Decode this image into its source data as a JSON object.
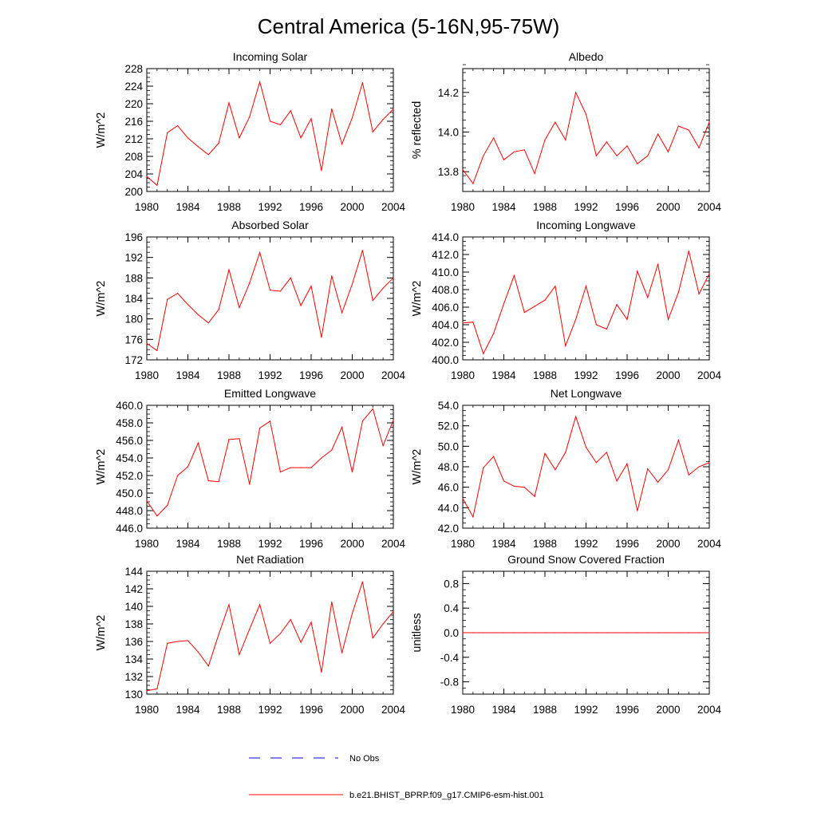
{
  "title": "Central America (5-16N,95-75W)",
  "colors": {
    "model_line": "#ff0000",
    "obs_line": "#0000ff",
    "axis": "#000000"
  },
  "legend": {
    "obs_label": "No Obs",
    "model_label": "b.e21.BHIST_BPRP.f09_g17.CMIP6-esm-hist.001"
  },
  "chart_data": [
    {
      "type": "line",
      "title": "Incoming Solar",
      "ylabel": "W/m^2",
      "xlim": [
        1980,
        2004
      ],
      "ylim": [
        200,
        228
      ],
      "xticks": [
        1980,
        1984,
        1988,
        1992,
        1996,
        2000,
        2004
      ],
      "xtick_labels": [
        "1980",
        "1984",
        "1988",
        "1992",
        "1996",
        "2000",
        "2004"
      ],
      "yticks": [
        200,
        204,
        208,
        212,
        216,
        220,
        224,
        228
      ],
      "ytick_labels": [
        "200",
        "204",
        "208",
        "212",
        "216",
        "220",
        "224",
        "228"
      ],
      "ytick_minor_step": 1,
      "series": [
        {
          "name": "b.e21.BHIST_BPRP.f09_g17.CMIP6-esm-hist.001",
          "x": [
            1980,
            1981,
            1982,
            1983,
            1984,
            1985,
            1986,
            1987,
            1988,
            1989,
            1990,
            1991,
            1992,
            1993,
            1994,
            1995,
            1996,
            1997,
            1998,
            1999,
            2000,
            2001,
            2002,
            2003,
            2004
          ],
          "values": [
            203.4,
            201.4,
            213.4,
            215.0,
            212.2,
            210.2,
            208.4,
            211.0,
            220.2,
            212.2,
            217.0,
            225.0,
            216.0,
            215.2,
            218.4,
            212.2,
            216.6,
            204.8,
            218.8,
            210.8,
            216.8,
            224.8,
            213.6,
            216.4,
            218.8
          ]
        }
      ]
    },
    {
      "type": "line",
      "title": "Albedo",
      "ylabel": "% reflected",
      "xlim": [
        1980,
        2004
      ],
      "ylim": [
        13.7,
        14.32
      ],
      "xticks": [
        1980,
        1984,
        1988,
        1992,
        1996,
        2000,
        2004
      ],
      "xtick_labels": [
        "1980",
        "1984",
        "1988",
        "1992",
        "1996",
        "2000",
        "2004"
      ],
      "yticks": [
        13.8,
        14.0,
        14.2
      ],
      "ytick_labels": [
        "13.8",
        "14.0",
        "14.2"
      ],
      "ytick_minor_step": 0.04,
      "series": [
        {
          "name": "b.e21.BHIST_BPRP.f09_g17.CMIP6-esm-hist.001",
          "x": [
            1980,
            1981,
            1982,
            1983,
            1984,
            1985,
            1986,
            1987,
            1988,
            1989,
            1990,
            1991,
            1992,
            1993,
            1994,
            1995,
            1996,
            1997,
            1998,
            1999,
            2000,
            2001,
            2002,
            2003,
            2004
          ],
          "values": [
            13.81,
            13.74,
            13.88,
            13.97,
            13.86,
            13.9,
            13.91,
            13.79,
            13.96,
            14.05,
            13.96,
            14.2,
            14.09,
            13.88,
            13.95,
            13.88,
            13.93,
            13.84,
            13.88,
            13.99,
            13.9,
            14.03,
            14.01,
            13.92,
            14.05
          ]
        }
      ]
    },
    {
      "type": "line",
      "title": "Absorbed Solar",
      "ylabel": "W/m^2",
      "xlim": [
        1980,
        2004
      ],
      "ylim": [
        172,
        196
      ],
      "xticks": [
        1980,
        1984,
        1988,
        1992,
        1996,
        2000,
        2004
      ],
      "xtick_labels": [
        "1980",
        "1984",
        "1988",
        "1992",
        "1996",
        "2000",
        "2004"
      ],
      "yticks": [
        172,
        176,
        180,
        184,
        188,
        192,
        196
      ],
      "ytick_labels": [
        "172",
        "176",
        "180",
        "184",
        "188",
        "192",
        "196"
      ],
      "ytick_minor_step": 1,
      "series": [
        {
          "name": "b.e21.BHIST_BPRP.f09_g17.CMIP6-esm-hist.001",
          "x": [
            1980,
            1981,
            1982,
            1983,
            1984,
            1985,
            1986,
            1987,
            1988,
            1989,
            1990,
            1991,
            1992,
            1993,
            1994,
            1995,
            1996,
            1997,
            1998,
            1999,
            2000,
            2001,
            2002,
            2003,
            2004
          ],
          "values": [
            175.2,
            173.8,
            183.8,
            185.0,
            182.8,
            180.8,
            179.2,
            181.8,
            189.6,
            182.2,
            187.0,
            193.0,
            185.6,
            185.4,
            188.0,
            182.6,
            186.4,
            176.4,
            188.4,
            181.2,
            186.8,
            193.4,
            183.6,
            186.0,
            188.0
          ]
        }
      ]
    },
    {
      "type": "line",
      "title": "Incoming Longwave",
      "ylabel": "W/m^2",
      "xlim": [
        1980,
        2004
      ],
      "ylim": [
        400,
        414
      ],
      "xticks": [
        1980,
        1984,
        1988,
        1992,
        1996,
        2000,
        2004
      ],
      "xtick_labels": [
        "1980",
        "1984",
        "1988",
        "1992",
        "1996",
        "2000",
        "2004"
      ],
      "yticks": [
        400,
        402,
        404,
        406,
        408,
        410,
        412,
        414
      ],
      "ytick_labels": [
        "400.0",
        "402.0",
        "404.0",
        "406.0",
        "408.0",
        "410.0",
        "412.0",
        "414.0"
      ],
      "ytick_minor_step": 0.5,
      "series": [
        {
          "name": "b.e21.BHIST_BPRP.f09_g17.CMIP6-esm-hist.001",
          "x": [
            1980,
            1981,
            1982,
            1983,
            1984,
            1985,
            1986,
            1987,
            1988,
            1989,
            1990,
            1991,
            1992,
            1993,
            1994,
            1995,
            1996,
            1997,
            1998,
            1999,
            2000,
            2001,
            2002,
            2003,
            2004
          ],
          "values": [
            404.2,
            404.3,
            400.7,
            403.0,
            406.4,
            409.6,
            405.4,
            406.1,
            406.8,
            408.4,
            401.6,
            404.6,
            408.4,
            404.0,
            403.5,
            406.3,
            404.6,
            410.1,
            407.1,
            410.9,
            404.6,
            407.7,
            412.4,
            407.5,
            409.8
          ]
        }
      ]
    },
    {
      "type": "line",
      "title": "Emitted Longwave",
      "ylabel": "W/m^2",
      "xlim": [
        1980,
        2004
      ],
      "ylim": [
        446,
        460
      ],
      "xticks": [
        1980,
        1984,
        1988,
        1992,
        1996,
        2000,
        2004
      ],
      "xtick_labels": [
        "1980",
        "1984",
        "1988",
        "1992",
        "1996",
        "2000",
        "2004"
      ],
      "yticks": [
        446,
        448,
        450,
        452,
        454,
        456,
        458,
        460
      ],
      "ytick_labels": [
        "446.0",
        "448.0",
        "450.0",
        "452.0",
        "454.0",
        "456.0",
        "458.0",
        "460.0"
      ],
      "ytick_minor_step": 0.5,
      "series": [
        {
          "name": "b.e21.BHIST_BPRP.f09_g17.CMIP6-esm-hist.001",
          "x": [
            1980,
            1981,
            1982,
            1983,
            1984,
            1985,
            1986,
            1987,
            1988,
            1989,
            1990,
            1991,
            1992,
            1993,
            1994,
            1995,
            1996,
            1997,
            1998,
            1999,
            2000,
            2001,
            2002,
            2003,
            2004
          ],
          "values": [
            449.1,
            447.4,
            448.6,
            452.0,
            453.0,
            455.7,
            451.4,
            451.3,
            456.1,
            456.2,
            451.0,
            457.4,
            458.2,
            452.4,
            452.9,
            452.9,
            452.9,
            454.0,
            454.9,
            457.5,
            452.4,
            458.2,
            459.6,
            455.4,
            458.3
          ]
        }
      ]
    },
    {
      "type": "line",
      "title": "Net Longwave",
      "ylabel": "W/m^2",
      "xlim": [
        1980,
        2004
      ],
      "ylim": [
        42,
        54
      ],
      "xticks": [
        1980,
        1984,
        1988,
        1992,
        1996,
        2000,
        2004
      ],
      "xtick_labels": [
        "1980",
        "1984",
        "1988",
        "1992",
        "1996",
        "2000",
        "2004"
      ],
      "yticks": [
        42,
        44,
        46,
        48,
        50,
        52,
        54
      ],
      "ytick_labels": [
        "42.0",
        "44.0",
        "46.0",
        "48.0",
        "50.0",
        "52.0",
        "54.0"
      ],
      "ytick_minor_step": 0.5,
      "series": [
        {
          "name": "b.e21.BHIST_BPRP.f09_g17.CMIP6-esm-hist.001",
          "x": [
            1980,
            1981,
            1982,
            1983,
            1984,
            1985,
            1986,
            1987,
            1988,
            1989,
            1990,
            1991,
            1992,
            1993,
            1994,
            1995,
            1996,
            1997,
            1998,
            1999,
            2000,
            2001,
            2002,
            2003,
            2004
          ],
          "values": [
            44.9,
            43.1,
            47.9,
            49.0,
            46.6,
            46.1,
            46.0,
            45.1,
            49.3,
            47.7,
            49.4,
            52.9,
            49.9,
            48.4,
            49.4,
            46.6,
            48.3,
            43.7,
            47.8,
            46.5,
            47.7,
            50.6,
            47.2,
            48.0,
            48.4
          ]
        }
      ]
    },
    {
      "type": "line",
      "title": "Net Radiation",
      "ylabel": "W/m^2",
      "xlim": [
        1980,
        2004
      ],
      "ylim": [
        130,
        144
      ],
      "xticks": [
        1980,
        1984,
        1988,
        1992,
        1996,
        2000,
        2004
      ],
      "xtick_labels": [
        "1980",
        "1984",
        "1988",
        "1992",
        "1996",
        "2000",
        "2004"
      ],
      "yticks": [
        130,
        132,
        134,
        136,
        138,
        140,
        142,
        144
      ],
      "ytick_labels": [
        "130",
        "132",
        "134",
        "136",
        "138",
        "140",
        "142",
        "144"
      ],
      "ytick_minor_step": 0.5,
      "series": [
        {
          "name": "b.e21.BHIST_BPRP.f09_g17.CMIP6-esm-hist.001",
          "x": [
            1980,
            1981,
            1982,
            1983,
            1984,
            1985,
            1986,
            1987,
            1988,
            1989,
            1990,
            1991,
            1992,
            1993,
            1994,
            1995,
            1996,
            1997,
            1998,
            1999,
            2000,
            2001,
            2002,
            2003,
            2004
          ],
          "values": [
            130.4,
            130.6,
            135.8,
            136.0,
            136.1,
            134.8,
            133.2,
            136.8,
            140.2,
            134.5,
            137.4,
            140.2,
            135.8,
            136.9,
            138.5,
            135.9,
            138.2,
            132.5,
            140.5,
            134.7,
            139.2,
            142.8,
            136.4,
            138.0,
            139.4
          ]
        }
      ]
    },
    {
      "type": "line",
      "title": "Ground Snow Covered Fraction",
      "ylabel": "unitless",
      "xlim": [
        1980,
        2004
      ],
      "ylim": [
        -1.0,
        1.0
      ],
      "xticks": [
        1980,
        1984,
        1988,
        1992,
        1996,
        2000,
        2004
      ],
      "xtick_labels": [
        "1980",
        "1984",
        "1988",
        "1992",
        "1996",
        "2000",
        "2004"
      ],
      "yticks": [
        -0.8,
        -0.4,
        0.0,
        0.4,
        0.8
      ],
      "ytick_labels": [
        "-0.8",
        "-0.4",
        "0.0",
        "0.4",
        "0.8"
      ],
      "ytick_minor_step": 0.1,
      "series": [
        {
          "name": "b.e21.BHIST_BPRP.f09_g17.CMIP6-esm-hist.001",
          "x": [
            1980,
            1981,
            1982,
            1983,
            1984,
            1985,
            1986,
            1987,
            1988,
            1989,
            1990,
            1991,
            1992,
            1993,
            1994,
            1995,
            1996,
            1997,
            1998,
            1999,
            2000,
            2001,
            2002,
            2003,
            2004
          ],
          "values": [
            0,
            0,
            0,
            0,
            0,
            0,
            0,
            0,
            0,
            0,
            0,
            0,
            0,
            0,
            0,
            0,
            0,
            0,
            0,
            0,
            0,
            0,
            0,
            0,
            0
          ]
        }
      ]
    }
  ]
}
